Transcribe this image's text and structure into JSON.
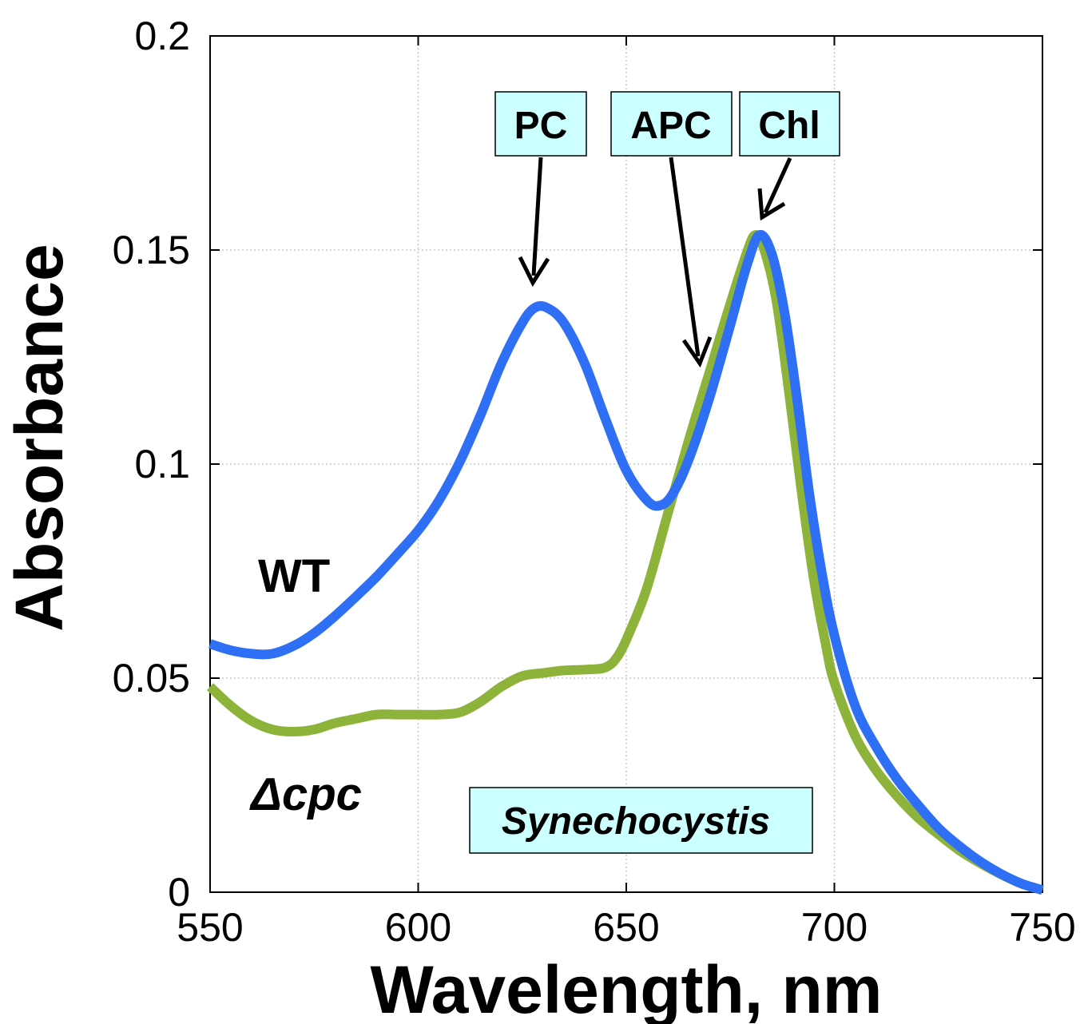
{
  "chart_data": {
    "type": "line",
    "xlabel": "Wavelength, nm",
    "ylabel": "Absorbance",
    "xlim": [
      550,
      750
    ],
    "ylim": [
      0,
      0.2
    ],
    "x_ticks": [
      "550",
      "600",
      "650",
      "700",
      "750"
    ],
    "y_ticks": [
      "0",
      "0.05",
      "0.1",
      "0.15",
      "0.2"
    ],
    "grid": true,
    "series": [
      {
        "name": "WT",
        "color": "#2e6ff5",
        "points": [
          [
            550,
            0.058
          ],
          [
            555,
            0.0565
          ],
          [
            560,
            0.0557
          ],
          [
            565,
            0.0557
          ],
          [
            570,
            0.0575
          ],
          [
            575,
            0.0605
          ],
          [
            580,
            0.0645
          ],
          [
            585,
            0.069
          ],
          [
            590,
            0.0737
          ],
          [
            595,
            0.079
          ],
          [
            600,
            0.0845
          ],
          [
            605,
            0.0915
          ],
          [
            610,
            0.1005
          ],
          [
            615,
            0.1115
          ],
          [
            620,
            0.1235
          ],
          [
            625,
            0.133
          ],
          [
            628,
            0.1365
          ],
          [
            631,
            0.1365
          ],
          [
            635,
            0.133
          ],
          [
            640,
            0.1235
          ],
          [
            645,
            0.1105
          ],
          [
            650,
            0.0985
          ],
          [
            655,
            0.0915
          ],
          [
            658,
            0.0903
          ],
          [
            661,
            0.0928
          ],
          [
            665,
            0.101
          ],
          [
            670,
            0.1155
          ],
          [
            675,
            0.1325
          ],
          [
            679,
            0.1465
          ],
          [
            682,
            0.1535
          ],
          [
            685,
            0.149
          ],
          [
            688,
            0.1355
          ],
          [
            691,
            0.1155
          ],
          [
            694,
            0.093
          ],
          [
            697,
            0.0745
          ],
          [
            700,
            0.06
          ],
          [
            705,
            0.0435
          ],
          [
            710,
            0.034
          ],
          [
            715,
            0.0265
          ],
          [
            720,
            0.0205
          ],
          [
            725,
            0.015
          ],
          [
            730,
            0.0108
          ],
          [
            735,
            0.0072
          ],
          [
            740,
            0.0043
          ],
          [
            745,
            0.002
          ],
          [
            750,
            0.0005
          ]
        ]
      },
      {
        "name": "Δcpc",
        "color": "#8db33a",
        "points": [
          [
            550,
            0.048
          ],
          [
            555,
            0.0435
          ],
          [
            560,
            0.04
          ],
          [
            565,
            0.038
          ],
          [
            570,
            0.0375
          ],
          [
            575,
            0.038
          ],
          [
            580,
            0.0395
          ],
          [
            585,
            0.0405
          ],
          [
            590,
            0.0415
          ],
          [
            595,
            0.0415
          ],
          [
            600,
            0.0415
          ],
          [
            605,
            0.0415
          ],
          [
            610,
            0.042
          ],
          [
            615,
            0.0445
          ],
          [
            620,
            0.048
          ],
          [
            625,
            0.0505
          ],
          [
            630,
            0.0512
          ],
          [
            635,
            0.0518
          ],
          [
            640,
            0.052
          ],
          [
            645,
            0.0525
          ],
          [
            648,
            0.0552
          ],
          [
            651,
            0.0612
          ],
          [
            655,
            0.0712
          ],
          [
            660,
            0.0885
          ],
          [
            665,
            0.1055
          ],
          [
            670,
            0.1215
          ],
          [
            675,
            0.1375
          ],
          [
            679,
            0.1495
          ],
          [
            681,
            0.1535
          ],
          [
            683,
            0.1505
          ],
          [
            686,
            0.1385
          ],
          [
            689,
            0.1175
          ],
          [
            692,
            0.0945
          ],
          [
            695,
            0.0735
          ],
          [
            698,
            0.0575
          ],
          [
            700,
            0.049
          ],
          [
            705,
            0.0365
          ],
          [
            710,
            0.0285
          ],
          [
            715,
            0.0225
          ],
          [
            720,
            0.0175
          ],
          [
            725,
            0.0135
          ],
          [
            730,
            0.0098
          ],
          [
            735,
            0.0068
          ],
          [
            740,
            0.0042
          ],
          [
            745,
            0.002
          ],
          [
            750,
            0.0005
          ]
        ]
      }
    ],
    "annotations": {
      "wt_label": "WT",
      "dcpc_label": "Δcpc",
      "organism_box": "Synechocystis",
      "pc_box": "PC",
      "apc_box": "APC",
      "chl_box": "Chl",
      "box_fill": "#ccffff"
    }
  }
}
